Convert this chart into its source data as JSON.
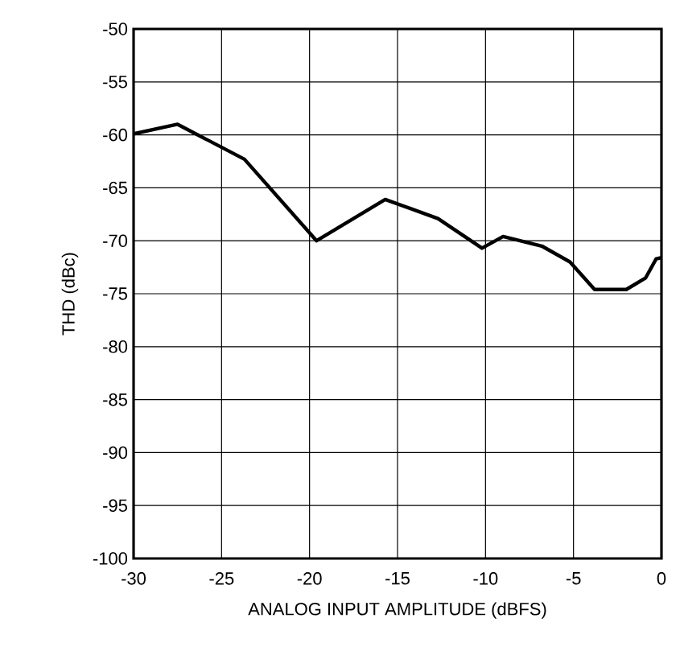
{
  "chart_data": {
    "type": "line",
    "xlabel": "ANALOG INPUT AMPLITUDE (dBFS)",
    "ylabel": "THD (dBc)",
    "x": [
      -30,
      -27.5,
      -23.7,
      -19.6,
      -15.7,
      -12.7,
      -10.2,
      -9.0,
      -6.8,
      -5.2,
      -3.8,
      -2.0,
      -0.9,
      -0.3,
      0
    ],
    "series": [
      {
        "color": "#000000",
        "values": [
          -59.9,
          -59.0,
          -62.3,
          -70.0,
          -66.1,
          -67.9,
          -70.7,
          -69.6,
          -70.5,
          -72.0,
          -74.6,
          -74.6,
          -73.5,
          -71.7,
          -71.6
        ]
      }
    ],
    "xlim": [
      -30,
      0
    ],
    "ylim": [
      -100,
      -50
    ],
    "xticks": [
      -30,
      -25,
      -20,
      -15,
      -10,
      -5,
      0
    ],
    "yticks": [
      -100,
      -95,
      -90,
      -85,
      -80,
      -75,
      -70,
      -65,
      -60,
      -55,
      -50
    ],
    "grid": true,
    "marker": "none",
    "line_style": "solid"
  }
}
